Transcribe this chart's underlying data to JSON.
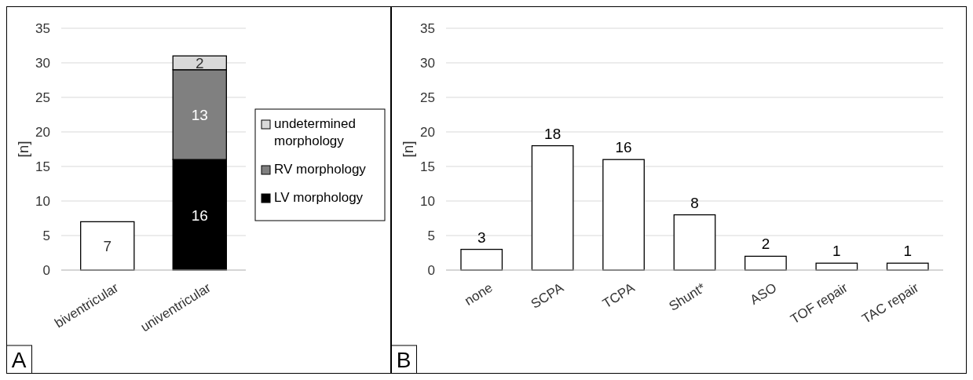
{
  "chart_data": [
    {
      "type": "bar",
      "stacked": true,
      "categories": [
        "biventricular",
        "univentricular"
      ],
      "series": [
        {
          "color": "#ffffff",
          "values": [
            7,
            null
          ]
        },
        {
          "name": "LV morphology",
          "color": "#000000",
          "values": [
            null,
            16
          ]
        },
        {
          "name": "RV morphology",
          "color": "#808080",
          "values": [
            null,
            13
          ]
        },
        {
          "name": "undetermined morphology",
          "color": "#d9d9d9",
          "values": [
            null,
            2
          ]
        }
      ],
      "ylabel": "[n]",
      "ylim": [
        0,
        35
      ],
      "yticks": [
        0,
        5,
        10,
        15,
        20,
        25,
        30,
        35
      ],
      "grid": "y",
      "legend": "right",
      "data_labels": true,
      "annotations": [
        "A"
      ]
    },
    {
      "type": "bar",
      "categories": [
        "none",
        "SCPA",
        "TCPA",
        "Shunt*",
        "ASO",
        "TOF repair",
        "TAC repair"
      ],
      "values": [
        3,
        18,
        16,
        8,
        2,
        1,
        1
      ],
      "color": "#ffffff",
      "ylabel": "[n]",
      "ylim": [
        0,
        35
      ],
      "yticks": [
        0,
        5,
        10,
        15,
        20,
        25,
        30,
        35
      ],
      "grid": "y",
      "data_labels": true,
      "annotations": [
        "B"
      ]
    }
  ]
}
